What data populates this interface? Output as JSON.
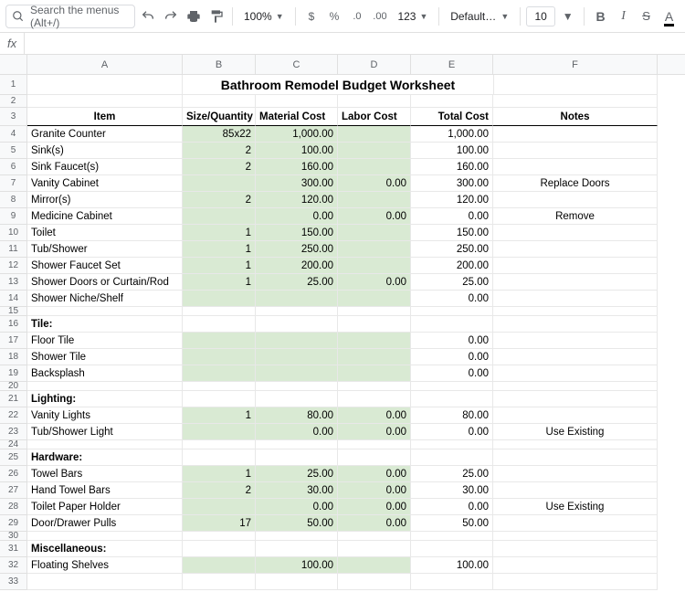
{
  "toolbar": {
    "search_placeholder": "Search the menus (Alt+/)",
    "zoom": "100%",
    "currency": "$",
    "percent": "%",
    "dec_minus": ".0",
    "dec_plus": ".00",
    "fmt": "123",
    "font": "Default (Ari…",
    "size": "10",
    "bold": "B",
    "italic": "I",
    "strike": "S",
    "textcolor": "A"
  },
  "fx": "fx",
  "columns": [
    "A",
    "B",
    "C",
    "D",
    "E",
    "F"
  ],
  "title": "Bathroom Remodel Budget Worksheet",
  "headers": {
    "item": "Item",
    "size": "Size/Quantity",
    "material": "Material Cost",
    "labor": "Labor Cost",
    "total": "Total Cost",
    "notes": "Notes"
  },
  "rows": [
    {
      "n": "4",
      "item": "Granite Counter",
      "b": "85x22",
      "c": "1,000.00",
      "d": "",
      "e": "1,000.00",
      "f": "",
      "g": true
    },
    {
      "n": "5",
      "item": "Sink(s)",
      "b": "2",
      "c": "100.00",
      "d": "",
      "e": "100.00",
      "f": "",
      "g": true
    },
    {
      "n": "6",
      "item": "Sink Faucet(s)",
      "b": "2",
      "c": "160.00",
      "d": "",
      "e": "160.00",
      "f": "",
      "g": true
    },
    {
      "n": "7",
      "item": "Vanity Cabinet",
      "b": "",
      "c": "300.00",
      "d": "0.00",
      "e": "300.00",
      "f": "Replace Doors",
      "g": true
    },
    {
      "n": "8",
      "item": "Mirror(s)",
      "b": "2",
      "c": "120.00",
      "d": "",
      "e": "120.00",
      "f": "",
      "g": true
    },
    {
      "n": "9",
      "item": "Medicine Cabinet",
      "b": "",
      "c": "0.00",
      "d": "0.00",
      "e": "0.00",
      "f": "Remove",
      "g": true
    },
    {
      "n": "10",
      "item": "Toilet",
      "b": "1",
      "c": "150.00",
      "d": "",
      "e": "150.00",
      "f": "",
      "g": true
    },
    {
      "n": "11",
      "item": "Tub/Shower",
      "b": "1",
      "c": "250.00",
      "d": "",
      "e": "250.00",
      "f": "",
      "g": true
    },
    {
      "n": "12",
      "item": "Shower Faucet Set",
      "b": "1",
      "c": "200.00",
      "d": "",
      "e": "200.00",
      "f": "",
      "g": true
    },
    {
      "n": "13",
      "item": "Shower Doors or Curtain/Rod",
      "b": "1",
      "c": "25.00",
      "d": "0.00",
      "e": "25.00",
      "f": "",
      "g": true
    },
    {
      "n": "14",
      "item": "Shower Niche/Shelf",
      "b": "",
      "c": "",
      "d": "",
      "e": "0.00",
      "f": "",
      "g": true
    },
    {
      "n": "15",
      "short": true
    },
    {
      "n": "16",
      "item": "Tile:",
      "section": true
    },
    {
      "n": "17",
      "item": "Floor Tile",
      "b": "",
      "c": "",
      "d": "",
      "e": "0.00",
      "f": "",
      "g": true
    },
    {
      "n": "18",
      "item": "Shower Tile",
      "b": "",
      "c": "",
      "d": "",
      "e": "0.00",
      "f": "",
      "g": true
    },
    {
      "n": "19",
      "item": "Backsplash",
      "b": "",
      "c": "",
      "d": "",
      "e": "0.00",
      "f": "",
      "g": true
    },
    {
      "n": "20",
      "short": true
    },
    {
      "n": "21",
      "item": "Lighting:",
      "section": true
    },
    {
      "n": "22",
      "item": "Vanity Lights",
      "b": "1",
      "c": "80.00",
      "d": "0.00",
      "e": "80.00",
      "f": "",
      "g": true
    },
    {
      "n": "23",
      "item": "Tub/Shower Light",
      "b": "",
      "c": "0.00",
      "d": "0.00",
      "e": "0.00",
      "f": "Use Existing",
      "g": true
    },
    {
      "n": "24",
      "short": true
    },
    {
      "n": "25",
      "item": "Hardware:",
      "section": true
    },
    {
      "n": "26",
      "item": "Towel Bars",
      "b": "1",
      "c": "25.00",
      "d": "0.00",
      "e": "25.00",
      "f": "",
      "g": true
    },
    {
      "n": "27",
      "item": "Hand Towel Bars",
      "b": "2",
      "c": "30.00",
      "d": "0.00",
      "e": "30.00",
      "f": "",
      "g": true
    },
    {
      "n": "28",
      "item": "Toilet Paper Holder",
      "b": "",
      "c": "0.00",
      "d": "0.00",
      "e": "0.00",
      "f": "Use Existing",
      "g": true
    },
    {
      "n": "29",
      "item": "Door/Drawer Pulls",
      "b": "17",
      "c": "50.00",
      "d": "0.00",
      "e": "50.00",
      "f": "",
      "g": true
    },
    {
      "n": "30",
      "short": true
    },
    {
      "n": "31",
      "item": "Miscellaneous:",
      "section": true
    },
    {
      "n": "32",
      "item": "Floating Shelves",
      "b": "",
      "c": "100.00",
      "d": "",
      "e": "100.00",
      "f": "",
      "g": true
    },
    {
      "n": "33"
    }
  ]
}
